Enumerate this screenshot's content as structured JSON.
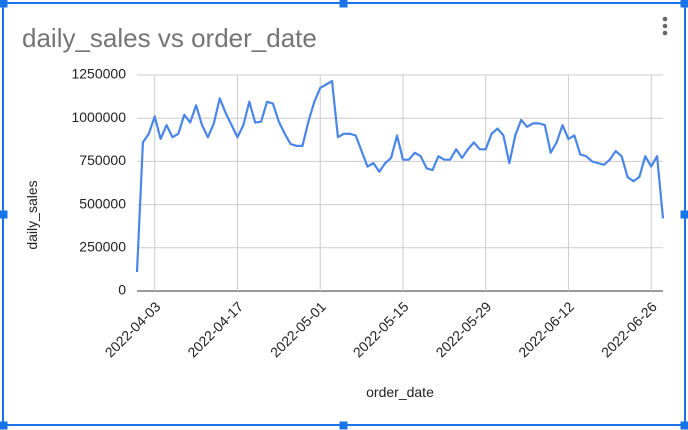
{
  "chart_data": {
    "type": "line",
    "title": "daily_sales vs order_date",
    "x_label": "order_date",
    "y_label": "daily_sales",
    "x": [
      "2022-03-31",
      "2022-04-01",
      "2022-04-02",
      "2022-04-03",
      "2022-04-04",
      "2022-04-05",
      "2022-04-06",
      "2022-04-07",
      "2022-04-08",
      "2022-04-09",
      "2022-04-10",
      "2022-04-11",
      "2022-04-12",
      "2022-04-13",
      "2022-04-14",
      "2022-04-15",
      "2022-04-16",
      "2022-04-17",
      "2022-04-18",
      "2022-04-19",
      "2022-04-20",
      "2022-04-21",
      "2022-04-22",
      "2022-04-23",
      "2022-04-24",
      "2022-04-25",
      "2022-04-26",
      "2022-04-27",
      "2022-04-28",
      "2022-04-29",
      "2022-04-30",
      "2022-05-01",
      "2022-05-02",
      "2022-05-03",
      "2022-05-04",
      "2022-05-05",
      "2022-05-06",
      "2022-05-07",
      "2022-05-08",
      "2022-05-09",
      "2022-05-10",
      "2022-05-11",
      "2022-05-12",
      "2022-05-13",
      "2022-05-14",
      "2022-05-15",
      "2022-05-16",
      "2022-05-17",
      "2022-05-18",
      "2022-05-19",
      "2022-05-20",
      "2022-05-21",
      "2022-05-22",
      "2022-05-23",
      "2022-05-24",
      "2022-05-25",
      "2022-05-26",
      "2022-05-27",
      "2022-05-28",
      "2022-05-29",
      "2022-05-30",
      "2022-05-31",
      "2022-06-01",
      "2022-06-02",
      "2022-06-03",
      "2022-06-04",
      "2022-06-05",
      "2022-06-06",
      "2022-06-07",
      "2022-06-08",
      "2022-06-09",
      "2022-06-10",
      "2022-06-11",
      "2022-06-12",
      "2022-06-13",
      "2022-06-14",
      "2022-06-15",
      "2022-06-16",
      "2022-06-17",
      "2022-06-18",
      "2022-06-19",
      "2022-06-20",
      "2022-06-21",
      "2022-06-22",
      "2022-06-23",
      "2022-06-24",
      "2022-06-25",
      "2022-06-26",
      "2022-06-27",
      "2022-06-28"
    ],
    "series": [
      {
        "name": "daily_sales",
        "color": "#4a86e8",
        "values": [
          110000,
          860000,
          910000,
          1010000,
          880000,
          960000,
          890000,
          910000,
          1020000,
          975000,
          1075000,
          960000,
          890000,
          970000,
          1115000,
          1030000,
          960000,
          890000,
          960000,
          1095000,
          975000,
          980000,
          1095000,
          1085000,
          980000,
          910000,
          850000,
          840000,
          840000,
          980000,
          1095000,
          1175000,
          1195000,
          1215000,
          890000,
          910000,
          910000,
          900000,
          810000,
          720000,
          740000,
          690000,
          740000,
          770000,
          900000,
          760000,
          760000,
          800000,
          780000,
          710000,
          700000,
          780000,
          760000,
          760000,
          820000,
          770000,
          820000,
          860000,
          820000,
          820000,
          910000,
          940000,
          900000,
          740000,
          900000,
          990000,
          950000,
          970000,
          970000,
          960000,
          800000,
          860000,
          960000,
          880000,
          900000,
          790000,
          780000,
          750000,
          740000,
          730000,
          760000,
          810000,
          780000,
          660000,
          635000,
          660000,
          780000,
          720000,
          780000,
          420000
        ]
      }
    ],
    "xlim": [
      "2022-03-31",
      "2022-06-28"
    ],
    "xticks": [
      "2022-04-03",
      "2022-04-17",
      "2022-05-01",
      "2022-05-15",
      "2022-05-29",
      "2022-06-12",
      "2022-06-26"
    ],
    "ylim": [
      0,
      1250000
    ],
    "yticks": [
      0,
      250000,
      500000,
      750000,
      1000000,
      1250000
    ],
    "grid": true
  }
}
